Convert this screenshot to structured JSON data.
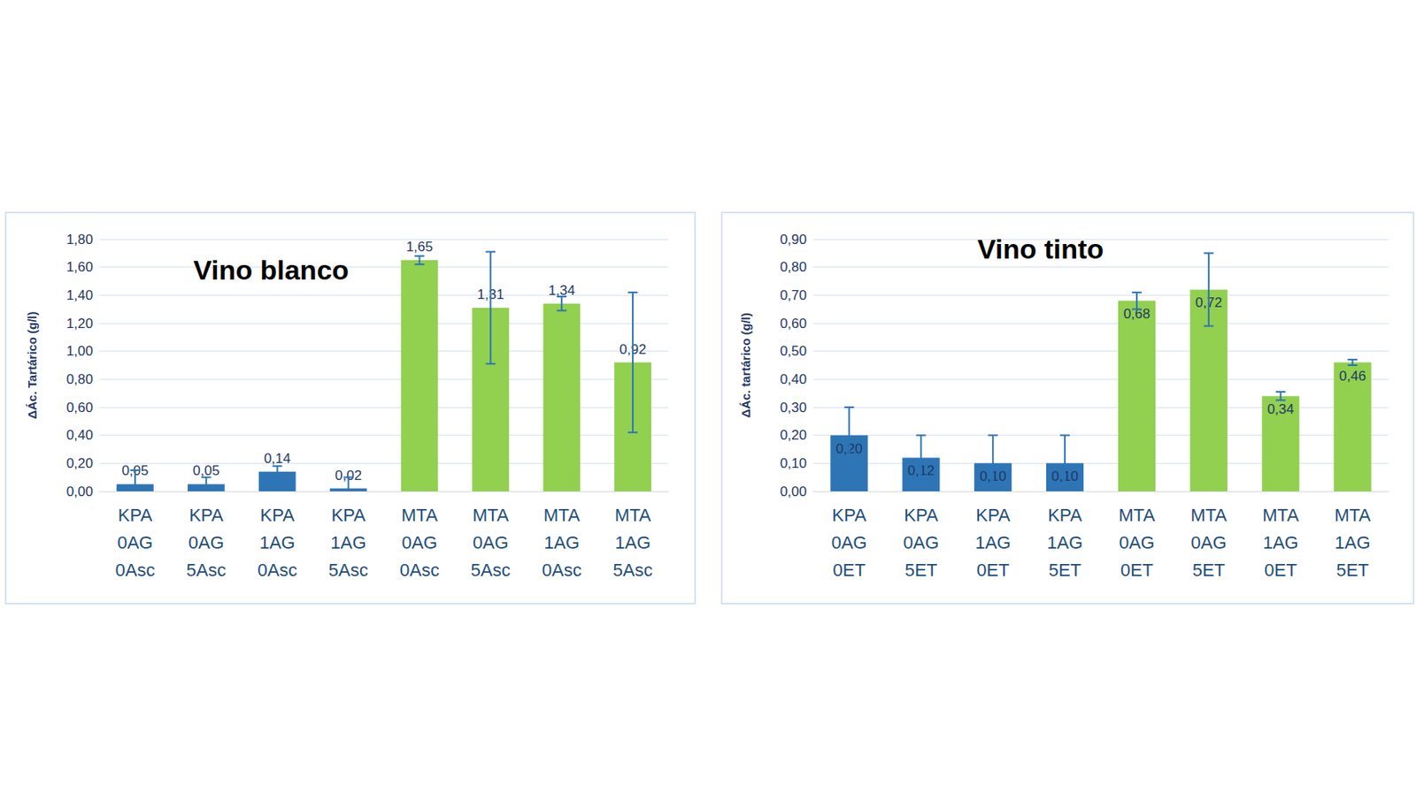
{
  "chart_data": [
    {
      "type": "bar",
      "title": "Vino blanco",
      "ylabel": "ΔÁc. Tartárico (g/l)",
      "categories": [
        "KPA\n0AG\n0Asc",
        "KPA\n0AG\n5Asc",
        "KPA\n1AG\n0Asc",
        "KPA\n1AG\n5Asc",
        "MTA\n0AG\n0Asc",
        "MTA\n0AG\n5Asc",
        "MTA\n1AG\n0Asc",
        "MTA\n1AG\n5Asc"
      ],
      "values": [
        0.05,
        0.05,
        0.14,
        0.02,
        1.65,
        1.31,
        1.34,
        0.92
      ],
      "value_labels": [
        "0,05",
        "0,05",
        "0,14",
        "0,02",
        "1,65",
        "1,31",
        "1,34",
        "0,92"
      ],
      "errors": [
        0.1,
        0.05,
        0.04,
        0.08,
        0.03,
        0.4,
        0.05,
        0.5
      ],
      "colors": [
        "#2e75b6",
        "#2e75b6",
        "#2e75b6",
        "#2e75b6",
        "#92d050",
        "#92d050",
        "#92d050",
        "#92d050"
      ],
      "ylim": [
        0,
        1.8
      ],
      "yticks": [
        {
          "value": 0,
          "label": "0,00"
        },
        {
          "value": 0.2,
          "label": "0,20"
        },
        {
          "value": 0.4,
          "label": "0,40"
        },
        {
          "value": 0.6,
          "label": "0,60"
        },
        {
          "value": 0.8,
          "label": "0,80"
        },
        {
          "value": 1.0,
          "label": "1,00"
        },
        {
          "value": 1.2,
          "label": "1,20"
        },
        {
          "value": 1.4,
          "label": "1,40"
        },
        {
          "value": 1.6,
          "label": "1,60"
        },
        {
          "value": 1.8,
          "label": "1,80"
        }
      ],
      "grid": true,
      "data_labels": true
    },
    {
      "type": "bar",
      "title": "Vino tinto",
      "ylabel": "ΔÁc. tartárico (g/l)",
      "categories": [
        "KPA\n0AG\n0ET",
        "KPA\n0AG\n5ET",
        "KPA\n1AG\n0ET",
        "KPA\n1AG\n5ET",
        "MTA\n0AG\n0ET",
        "MTA\n0AG\n5ET",
        "MTA\n1AG\n0ET",
        "MTA\n1AG\n5ET"
      ],
      "values": [
        0.2,
        0.12,
        0.1,
        0.1,
        0.68,
        0.72,
        0.34,
        0.46
      ],
      "value_labels": [
        "0,20",
        "0,12",
        "0,10",
        "0,10",
        "0,68",
        "0,72",
        "0,34",
        "0,46"
      ],
      "errors": [
        0.1,
        0.08,
        0.1,
        0.1,
        0.03,
        0.13,
        0.015,
        0.01
      ],
      "colors": [
        "#2e75b6",
        "#2e75b6",
        "#2e75b6",
        "#2e75b6",
        "#92d050",
        "#92d050",
        "#92d050",
        "#92d050"
      ],
      "ylim": [
        0,
        0.9
      ],
      "yticks": [
        {
          "value": 0,
          "label": "0,00"
        },
        {
          "value": 0.1,
          "label": "0,10"
        },
        {
          "value": 0.2,
          "label": "0,20"
        },
        {
          "value": 0.3,
          "label": "0,30"
        },
        {
          "value": 0.4,
          "label": "0,40"
        },
        {
          "value": 0.5,
          "label": "0,50"
        },
        {
          "value": 0.6,
          "label": "0,60"
        },
        {
          "value": 0.7,
          "label": "0,70"
        },
        {
          "value": 0.8,
          "label": "0,80"
        },
        {
          "value": 0.9,
          "label": "0,90"
        }
      ],
      "grid": true,
      "data_labels": true
    }
  ]
}
